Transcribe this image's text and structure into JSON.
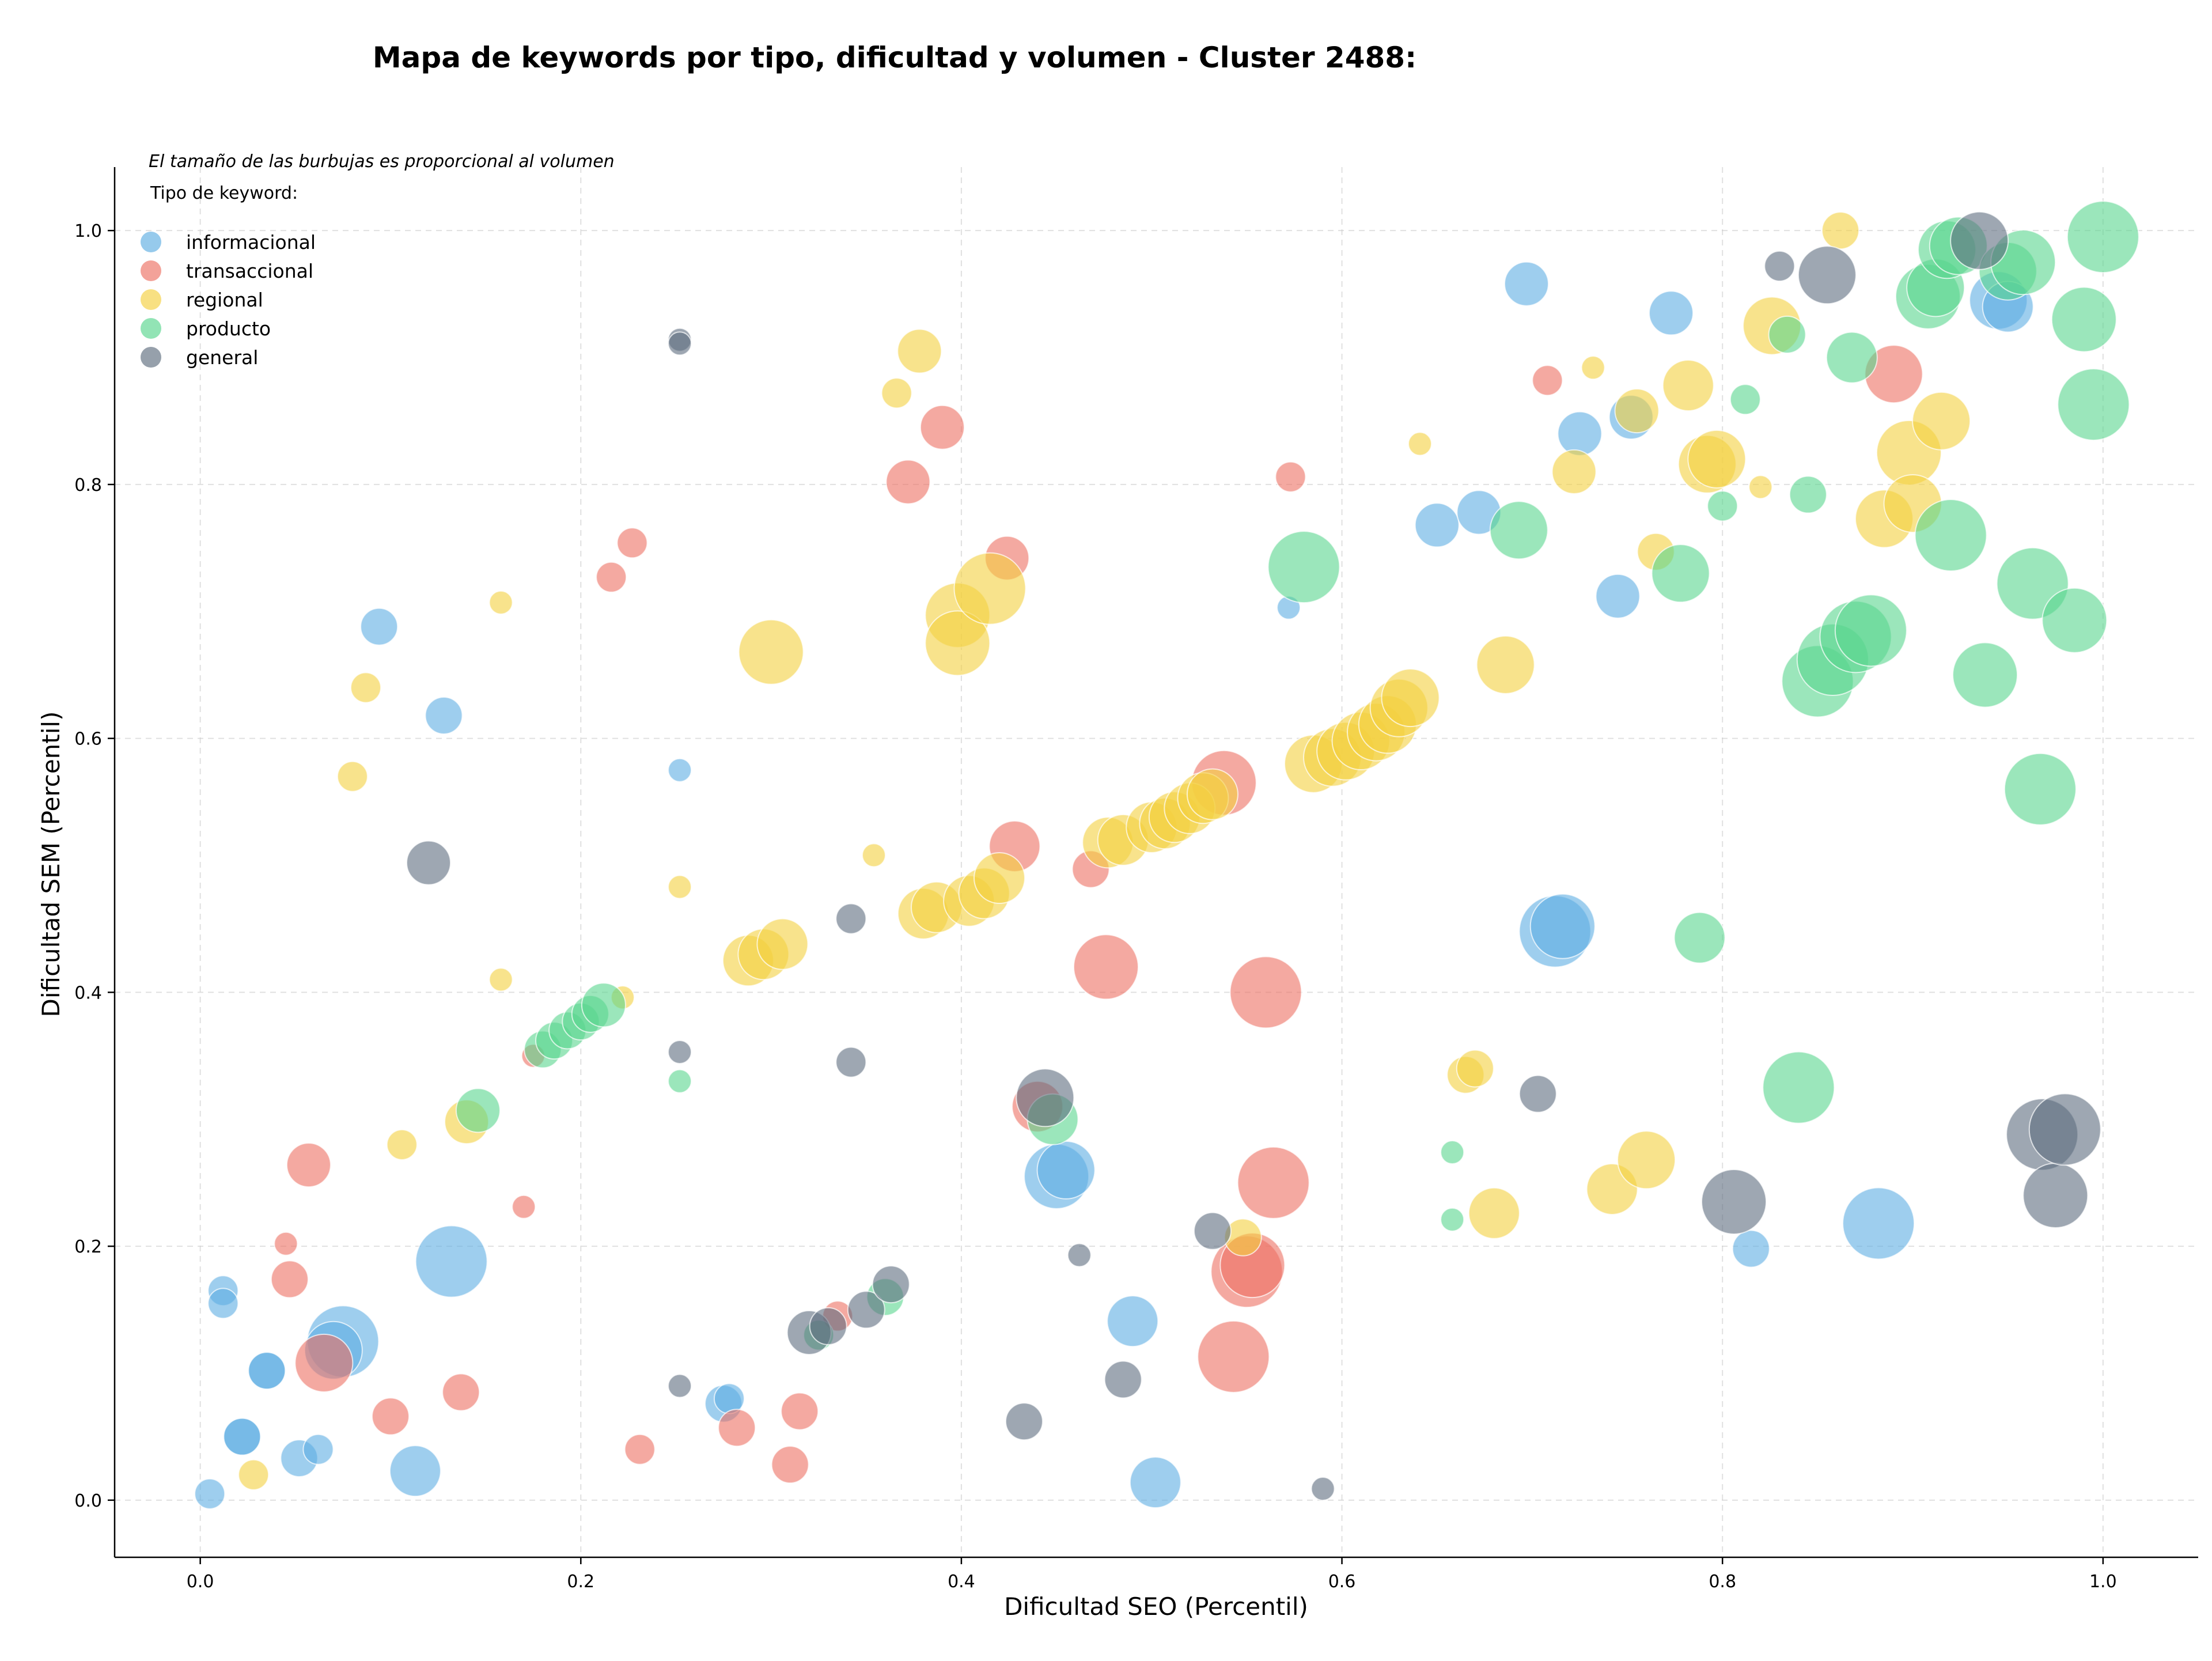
{
  "chart_data": {
    "type": "scatter",
    "title": "Mapa de keywords por tipo, dificultad y volumen - Cluster 2488:",
    "xlabel": "Dificultad SEO (Percentil)",
    "ylabel": "Dificultad SEM (Percentil)",
    "xlim": [
      -0.045,
      1.05
    ],
    "ylim": [
      -0.045,
      1.05
    ],
    "x_ticks": [
      0.0,
      0.2,
      0.4,
      0.6,
      0.8,
      1.0
    ],
    "y_ticks": [
      0.0,
      0.2,
      0.4,
      0.6,
      0.8,
      1.0
    ],
    "x_tick_labels": [
      "0.0",
      "0.2",
      "0.4",
      "0.6",
      "0.8",
      "1.0"
    ],
    "y_tick_labels": [
      "0.0",
      "0.2",
      "0.4",
      "0.6",
      "0.8",
      "1.0"
    ],
    "grid": true,
    "legend_position": "top-left",
    "legend_note": "El tamaño de las burbujas es proporcional al volumen",
    "legend_title": "Tipo de keyword:",
    "size_encoding": "volumen",
    "series": [
      {
        "name": "informacional",
        "color": "#5dade2",
        "points": [
          [
            0.005,
            0.005,
            2
          ],
          [
            0.012,
            0.165,
            2
          ],
          [
            0.012,
            0.155,
            2
          ],
          [
            0.022,
            0.05,
            3
          ],
          [
            0.022,
            0.05,
            3
          ],
          [
            0.035,
            0.102,
            3
          ],
          [
            0.035,
            0.102,
            3
          ],
          [
            0.052,
            0.033,
            3
          ],
          [
            0.062,
            0.04,
            2
          ],
          [
            0.075,
            0.125,
            8
          ],
          [
            0.07,
            0.118,
            6
          ],
          [
            0.094,
            0.688,
            3
          ],
          [
            0.113,
            0.023,
            5
          ],
          [
            0.128,
            0.618,
            3
          ],
          [
            0.132,
            0.188,
            8
          ],
          [
            0.252,
            0.575,
            1
          ],
          [
            0.275,
            0.076,
            3
          ],
          [
            0.278,
            0.08,
            2
          ],
          [
            0.45,
            0.255,
            7
          ],
          [
            0.455,
            0.26,
            6
          ],
          [
            0.49,
            0.141,
            5
          ],
          [
            0.502,
            0.014,
            5
          ],
          [
            0.572,
            0.703,
            1
          ],
          [
            0.65,
            0.768,
            4
          ],
          [
            0.672,
            0.778,
            4
          ],
          [
            0.697,
            0.958,
            4
          ],
          [
            0.712,
            0.448,
            8
          ],
          [
            0.716,
            0.452,
            7
          ],
          [
            0.725,
            0.84,
            4
          ],
          [
            0.745,
            0.712,
            4
          ],
          [
            0.752,
            0.853,
            4
          ],
          [
            0.773,
            0.935,
            4
          ],
          [
            0.815,
            0.198,
            3
          ],
          [
            0.882,
            0.218,
            8
          ],
          [
            0.945,
            0.945,
            6
          ],
          [
            0.95,
            0.94,
            5
          ]
        ]
      },
      {
        "name": "transaccional",
        "color": "#ec7063",
        "points": [
          [
            0.045,
            0.202,
            1
          ],
          [
            0.047,
            0.174,
            3
          ],
          [
            0.057,
            0.264,
            4
          ],
          [
            0.065,
            0.108,
            6
          ],
          [
            0.1,
            0.066,
            3
          ],
          [
            0.137,
            0.085,
            3
          ],
          [
            0.17,
            0.231,
            1
          ],
          [
            0.175,
            0.35,
            1
          ],
          [
            0.216,
            0.727,
            2
          ],
          [
            0.227,
            0.754,
            2
          ],
          [
            0.231,
            0.04,
            2
          ],
          [
            0.282,
            0.057,
            3
          ],
          [
            0.31,
            0.028,
            3
          ],
          [
            0.315,
            0.07,
            3
          ],
          [
            0.335,
            0.145,
            2
          ],
          [
            0.372,
            0.802,
            4
          ],
          [
            0.39,
            0.845,
            4
          ],
          [
            0.424,
            0.742,
            4
          ],
          [
            0.428,
            0.515,
            5
          ],
          [
            0.44,
            0.31,
            5
          ],
          [
            0.468,
            0.497,
            3
          ],
          [
            0.476,
            0.42,
            7
          ],
          [
            0.538,
            0.565,
            7
          ],
          [
            0.543,
            0.113,
            8
          ],
          [
            0.55,
            0.18,
            8
          ],
          [
            0.553,
            0.185,
            7
          ],
          [
            0.56,
            0.4,
            8
          ],
          [
            0.564,
            0.25,
            8
          ],
          [
            0.573,
            0.806,
            2
          ],
          [
            0.708,
            0.882,
            2
          ],
          [
            0.89,
            0.887,
            6
          ]
        ]
      },
      {
        "name": "regional",
        "color": "#f4d03f",
        "points": [
          [
            0.028,
            0.02,
            2
          ],
          [
            0.08,
            0.57,
            2
          ],
          [
            0.087,
            0.64,
            2
          ],
          [
            0.106,
            0.28,
            2
          ],
          [
            0.14,
            0.298,
            4
          ],
          [
            0.158,
            0.707,
            1
          ],
          [
            0.158,
            0.41,
            1
          ],
          [
            0.222,
            0.396,
            1
          ],
          [
            0.252,
            0.483,
            1
          ],
          [
            0.288,
            0.425,
            5
          ],
          [
            0.296,
            0.43,
            5
          ],
          [
            0.3,
            0.668,
            7
          ],
          [
            0.306,
            0.438,
            5
          ],
          [
            0.354,
            0.508,
            1
          ],
          [
            0.366,
            0.872,
            2
          ],
          [
            0.378,
            0.905,
            4
          ],
          [
            0.38,
            0.462,
            5
          ],
          [
            0.387,
            0.467,
            5
          ],
          [
            0.398,
            0.697,
            7
          ],
          [
            0.398,
            0.675,
            7
          ],
          [
            0.404,
            0.472,
            5
          ],
          [
            0.412,
            0.478,
            5
          ],
          [
            0.415,
            0.718,
            8
          ],
          [
            0.42,
            0.49,
            5
          ],
          [
            0.477,
            0.518,
            5
          ],
          [
            0.485,
            0.52,
            5
          ],
          [
            0.5,
            0.53,
            5
          ],
          [
            0.507,
            0.533,
            5
          ],
          [
            0.512,
            0.538,
            5
          ],
          [
            0.52,
            0.545,
            5
          ],
          [
            0.527,
            0.553,
            5
          ],
          [
            0.532,
            0.556,
            5
          ],
          [
            0.548,
            0.207,
            3
          ],
          [
            0.585,
            0.58,
            6
          ],
          [
            0.595,
            0.585,
            6
          ],
          [
            0.602,
            0.59,
            6
          ],
          [
            0.61,
            0.598,
            6
          ],
          [
            0.618,
            0.605,
            6
          ],
          [
            0.624,
            0.611,
            6
          ],
          [
            0.63,
            0.624,
            6
          ],
          [
            0.636,
            0.632,
            6
          ],
          [
            0.641,
            0.832,
            1
          ],
          [
            0.665,
            0.335,
            3
          ],
          [
            0.67,
            0.34,
            3
          ],
          [
            0.68,
            0.226,
            5
          ],
          [
            0.686,
            0.658,
            6
          ],
          [
            0.722,
            0.81,
            4
          ],
          [
            0.732,
            0.892,
            1
          ],
          [
            0.742,
            0.245,
            5
          ],
          [
            0.755,
            0.858,
            4
          ],
          [
            0.76,
            0.268,
            6
          ],
          [
            0.765,
            0.747,
            3
          ],
          [
            0.782,
            0.878,
            5
          ],
          [
            0.792,
            0.816,
            6
          ],
          [
            0.797,
            0.82,
            6
          ],
          [
            0.82,
            0.798,
            1
          ],
          [
            0.826,
            0.925,
            6
          ],
          [
            0.862,
            1.0,
            3
          ],
          [
            0.885,
            0.773,
            6
          ],
          [
            0.898,
            0.825,
            7
          ],
          [
            0.9,
            0.785,
            6
          ],
          [
            0.915,
            0.85,
            6
          ]
        ]
      },
      {
        "name": "producto",
        "color": "#58d68d",
        "points": [
          [
            0.18,
            0.355,
            3
          ],
          [
            0.186,
            0.362,
            3
          ],
          [
            0.193,
            0.37,
            3
          ],
          [
            0.2,
            0.377,
            3
          ],
          [
            0.205,
            0.383,
            3
          ],
          [
            0.212,
            0.39,
            4
          ],
          [
            0.146,
            0.307,
            4
          ],
          [
            0.252,
            0.33,
            1
          ],
          [
            0.325,
            0.13,
            2
          ],
          [
            0.36,
            0.16,
            3
          ],
          [
            0.448,
            0.3,
            5
          ],
          [
            0.58,
            0.735,
            8
          ],
          [
            0.658,
            0.274,
            1
          ],
          [
            0.658,
            0.221,
            1
          ],
          [
            0.693,
            0.764,
            6
          ],
          [
            0.778,
            0.73,
            6
          ],
          [
            0.788,
            0.443,
            5
          ],
          [
            0.8,
            0.783,
            2
          ],
          [
            0.812,
            0.867,
            2
          ],
          [
            0.834,
            0.918,
            3
          ],
          [
            0.84,
            0.325,
            8
          ],
          [
            0.845,
            0.792,
            3
          ],
          [
            0.85,
            0.645,
            8
          ],
          [
            0.858,
            0.662,
            8
          ],
          [
            0.868,
            0.9,
            5
          ],
          [
            0.87,
            0.68,
            8
          ],
          [
            0.878,
            0.685,
            8
          ],
          [
            0.908,
            0.948,
            7
          ],
          [
            0.912,
            0.955,
            6
          ],
          [
            0.918,
            0.985,
            6
          ],
          [
            0.92,
            0.76,
            8
          ],
          [
            0.924,
            0.988,
            6
          ],
          [
            0.938,
            0.65,
            7
          ],
          [
            0.95,
            0.968,
            6
          ],
          [
            0.958,
            0.975,
            7
          ],
          [
            0.963,
            0.722,
            8
          ],
          [
            0.967,
            0.56,
            8
          ],
          [
            0.985,
            0.693,
            7
          ],
          [
            0.99,
            0.93,
            7
          ],
          [
            0.995,
            0.863,
            8
          ],
          [
            1.0,
            0.995,
            8
          ]
        ]
      },
      {
        "name": "general",
        "color": "#5d6d7e",
        "points": [
          [
            0.12,
            0.502,
            4
          ],
          [
            0.252,
            0.914,
            1
          ],
          [
            0.252,
            0.911,
            1
          ],
          [
            0.252,
            0.353,
            1
          ],
          [
            0.252,
            0.09,
            1
          ],
          [
            0.32,
            0.132,
            4
          ],
          [
            0.33,
            0.137,
            3
          ],
          [
            0.342,
            0.458,
            2
          ],
          [
            0.342,
            0.345,
            2
          ],
          [
            0.35,
            0.15,
            3
          ],
          [
            0.363,
            0.17,
            3
          ],
          [
            0.433,
            0.062,
            3
          ],
          [
            0.444,
            0.317,
            6
          ],
          [
            0.462,
            0.193,
            1
          ],
          [
            0.485,
            0.095,
            3
          ],
          [
            0.532,
            0.212,
            3
          ],
          [
            0.59,
            0.009,
            1
          ],
          [
            0.703,
            0.32,
            3
          ],
          [
            0.806,
            0.235,
            7
          ],
          [
            0.83,
            0.972,
            2
          ],
          [
            0.855,
            0.965,
            6
          ],
          [
            0.935,
            0.992,
            6
          ],
          [
            0.968,
            0.288,
            8
          ],
          [
            0.975,
            0.24,
            7
          ],
          [
            0.98,
            0.292,
            8
          ]
        ]
      }
    ]
  }
}
